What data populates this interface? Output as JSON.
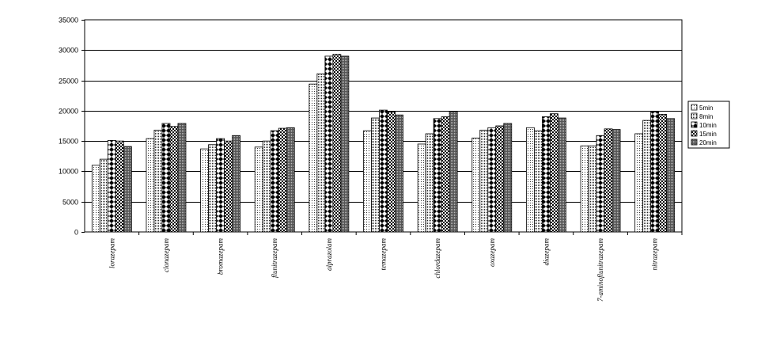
{
  "chart_data": {
    "type": "bar",
    "categories": [
      "lorazepam",
      "clonazepam",
      "bromazepam",
      "flunitrazepam",
      "alprazolam",
      "temazepam",
      "chlordazepam",
      "oxazepam",
      "diazepam",
      "7-aminoflunitrazepam",
      "nitrazepam"
    ],
    "series": [
      {
        "name": "5min",
        "pattern": "dots-light",
        "values": [
          11000,
          15400,
          13700,
          14000,
          24400,
          16700,
          14500,
          15500,
          17200,
          14200,
          16200
        ]
      },
      {
        "name": "8min",
        "pattern": "dots-dense",
        "values": [
          12000,
          16800,
          14400,
          15000,
          26100,
          18800,
          16200,
          16800,
          16700,
          14200,
          18400
        ]
      },
      {
        "name": "10min",
        "pattern": "diamonds",
        "values": [
          15100,
          17900,
          15400,
          16700,
          29000,
          20100,
          18700,
          17200,
          19000,
          15900,
          19800
        ]
      },
      {
        "name": "15min",
        "pattern": "checker",
        "values": [
          15000,
          17400,
          15000,
          17100,
          29300,
          19800,
          19000,
          17500,
          19500,
          17000,
          19400
        ]
      },
      {
        "name": "20min",
        "pattern": "dark-stipple",
        "values": [
          14100,
          17900,
          15900,
          17200,
          29000,
          19300,
          19900,
          17900,
          18800,
          16900,
          18700
        ]
      }
    ],
    "ylim": [
      0,
      35000
    ],
    "yticks": [
      0,
      5000,
      10000,
      15000,
      20000,
      25000,
      30000,
      35000
    ],
    "ytick_labels": [
      "0",
      "5000",
      "10000",
      "15000",
      "20000",
      "25000",
      "30000",
      "35000"
    ],
    "grid": true,
    "legend": "right"
  }
}
